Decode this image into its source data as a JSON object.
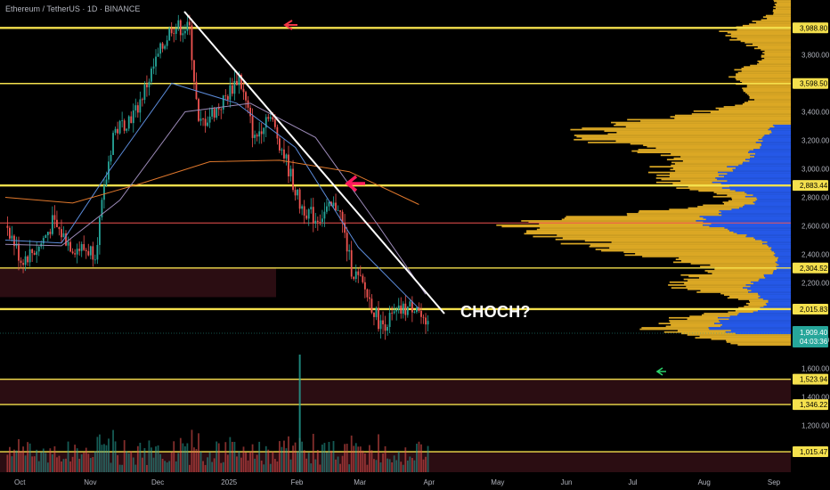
{
  "header": {
    "title": "Ethereum / TetherUS · 1D · BINANCE"
  },
  "annotation": {
    "text": "CHOCH?"
  },
  "colors": {
    "level_line": "#f4e04d",
    "red_line": "#ef5350",
    "trendline": "#ffffff",
    "up_candle": "#26a69a",
    "down_candle": "#ef5350",
    "ema_fast": "#5b8bd9",
    "ema_mid": "#9c8ab8",
    "ema_slow": "#e0782c",
    "profile_fill_yellow": "#f2b928",
    "profile_fill_blue": "#2962ff",
    "demand_zone": "#2b0d12",
    "price_badge": "#26a69a",
    "arrow_red": "#f23645",
    "arrow_pink": "#ff1a5c",
    "arrow_green": "#2bd36a"
  },
  "chart_data": {
    "type": "candlestick",
    "title": "Ethereum / TetherUS · 1D · BINANCE",
    "y_axis": {
      "range": [
        800,
        4350
      ],
      "ticks": [
        3800,
        3400,
        3200,
        3000,
        2800,
        2600,
        2400,
        2200,
        1800,
        1600,
        1400,
        1200
      ],
      "tick_labels": [
        "3,800.00",
        "3,400.00",
        "3,200.00",
        "3,000.00",
        "2,800.00",
        "2,600.00",
        "2,400.00",
        "2,200.00",
        "1,800.00",
        "1,600.00",
        "1,400.00",
        "1,200.00"
      ]
    },
    "x_axis": {
      "labels": [
        "Oct",
        "Nov",
        "Dec",
        "2025",
        "Feb",
        "Mar",
        "Apr",
        "May",
        "Jun",
        "Jul",
        "Aug",
        "Sep"
      ],
      "range": [
        "2024-09-25",
        "2025-09-30"
      ]
    },
    "levels": [
      {
        "price": 3988.8,
        "label": "3,988.80",
        "style": "yellow-thick"
      },
      {
        "price": 3598.5,
        "label": "3,598.50",
        "style": "yellow"
      },
      {
        "price": 2883.44,
        "label": "2,883.44",
        "style": "yellow-thick"
      },
      {
        "price": 2620,
        "label": "",
        "style": "red"
      },
      {
        "price": 2304.52,
        "label": "2,304.52",
        "style": "yellow"
      },
      {
        "price": 2015.83,
        "label": "2,015.83",
        "style": "yellow-thick"
      },
      {
        "price": 1523.94,
        "label": "1,523.94",
        "style": "yellow"
      },
      {
        "price": 1346.22,
        "label": "1,346.22",
        "style": "yellow"
      },
      {
        "price": 1015.47,
        "label": "1,015.47",
        "style": "yellow"
      }
    ],
    "current_price": {
      "price": 1909.4,
      "label": "1,909.40",
      "countdown": "04:03:36"
    },
    "trendline": {
      "from": [
        "2024-12-16",
        4100
      ],
      "to": [
        "2025-04-01",
        2000
      ]
    },
    "series": [
      {
        "name": "",
        "x": [
          "2024-09-25",
          "2024-10-20",
          "2024-11-10",
          "2024-12-08",
          "2025-01-06",
          "2025-02-01",
          "2025-03-01",
          "2025-03-28"
        ],
        "values": [
          2500,
          2480,
          2980,
          3600,
          3460,
          3150,
          2450,
          2020
        ],
        "kind": "ema_fast"
      },
      {
        "name": "",
        "x": [
          "2024-09-25",
          "2024-10-20",
          "2024-11-15",
          "2024-12-14",
          "2025-01-12",
          "2025-02-10",
          "2025-03-10",
          "2025-03-31"
        ],
        "values": [
          2470,
          2460,
          2780,
          3400,
          3460,
          3220,
          2600,
          2120
        ],
        "kind": "ema_mid"
      },
      {
        "name": "",
        "x": [
          "2024-09-25",
          "2024-10-25",
          "2024-11-25",
          "2024-12-25",
          "2025-01-25",
          "2025-02-25",
          "2025-03-28"
        ],
        "values": [
          2800,
          2760,
          2900,
          3050,
          3060,
          2980,
          2750
        ],
        "kind": "ema_slow"
      }
    ],
    "demand_zones": [
      {
        "from": 2100,
        "to": 2304.52
      },
      {
        "from": 1346.22,
        "to": 1523.94
      },
      {
        "from": 800,
        "to": 1015.47
      }
    ]
  }
}
